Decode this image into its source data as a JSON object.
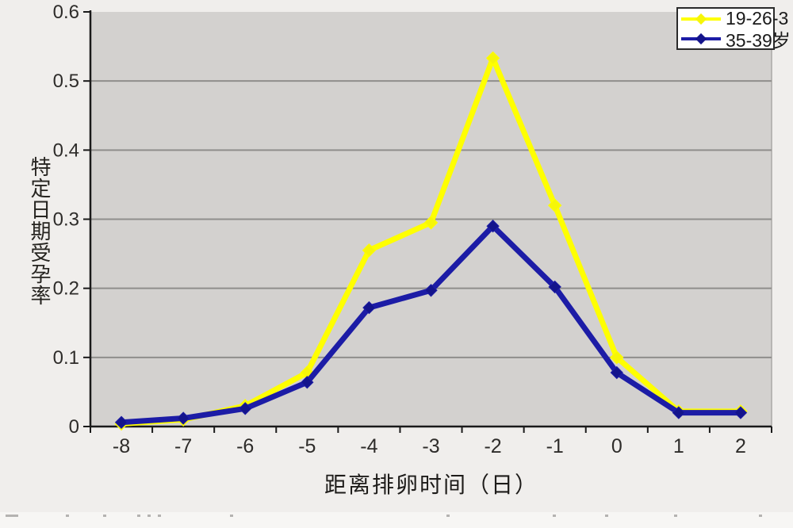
{
  "page": {
    "background": "#f0eeec",
    "plot_background": "#d3d1cf",
    "gridline_color": "#8f8e8c",
    "axis_color": "#1a1a1a",
    "tick_label_color": "#2e2c2a",
    "bottom_strip_marks_x": [
      7,
      83,
      130,
      173,
      186,
      199,
      290,
      563,
      697,
      763,
      850,
      957
    ]
  },
  "chart_data": {
    "type": "line",
    "title": "",
    "xlabel": "距离排卵时间（日）",
    "ylabel": "特定日期受孕率",
    "x": [
      -8,
      -7,
      -6,
      -5,
      -4,
      -3,
      -2,
      -1,
      0,
      1,
      2
    ],
    "ylim": [
      0,
      0.6
    ],
    "ytick_step": 0.1,
    "yticks": [
      0,
      0.1,
      0.2,
      0.3,
      0.4,
      0.5,
      0.6
    ],
    "grid": "horizontal-only",
    "legend_position": "top-right",
    "series": [
      {
        "name": "19-26-3",
        "color": "#ffff00",
        "marker": "diamond",
        "marker_color": "#f6f608",
        "values": [
          0.004,
          0.01,
          0.03,
          0.078,
          0.255,
          0.295,
          0.533,
          0.32,
          0.1,
          0.022,
          0.022
        ]
      },
      {
        "name": "35-39岁",
        "color": "#1c1ca6",
        "marker": "diamond",
        "marker_color": "#14148c",
        "values": [
          0.006,
          0.012,
          0.026,
          0.064,
          0.172,
          0.197,
          0.29,
          0.202,
          0.078,
          0.02,
          0.02
        ]
      }
    ]
  }
}
